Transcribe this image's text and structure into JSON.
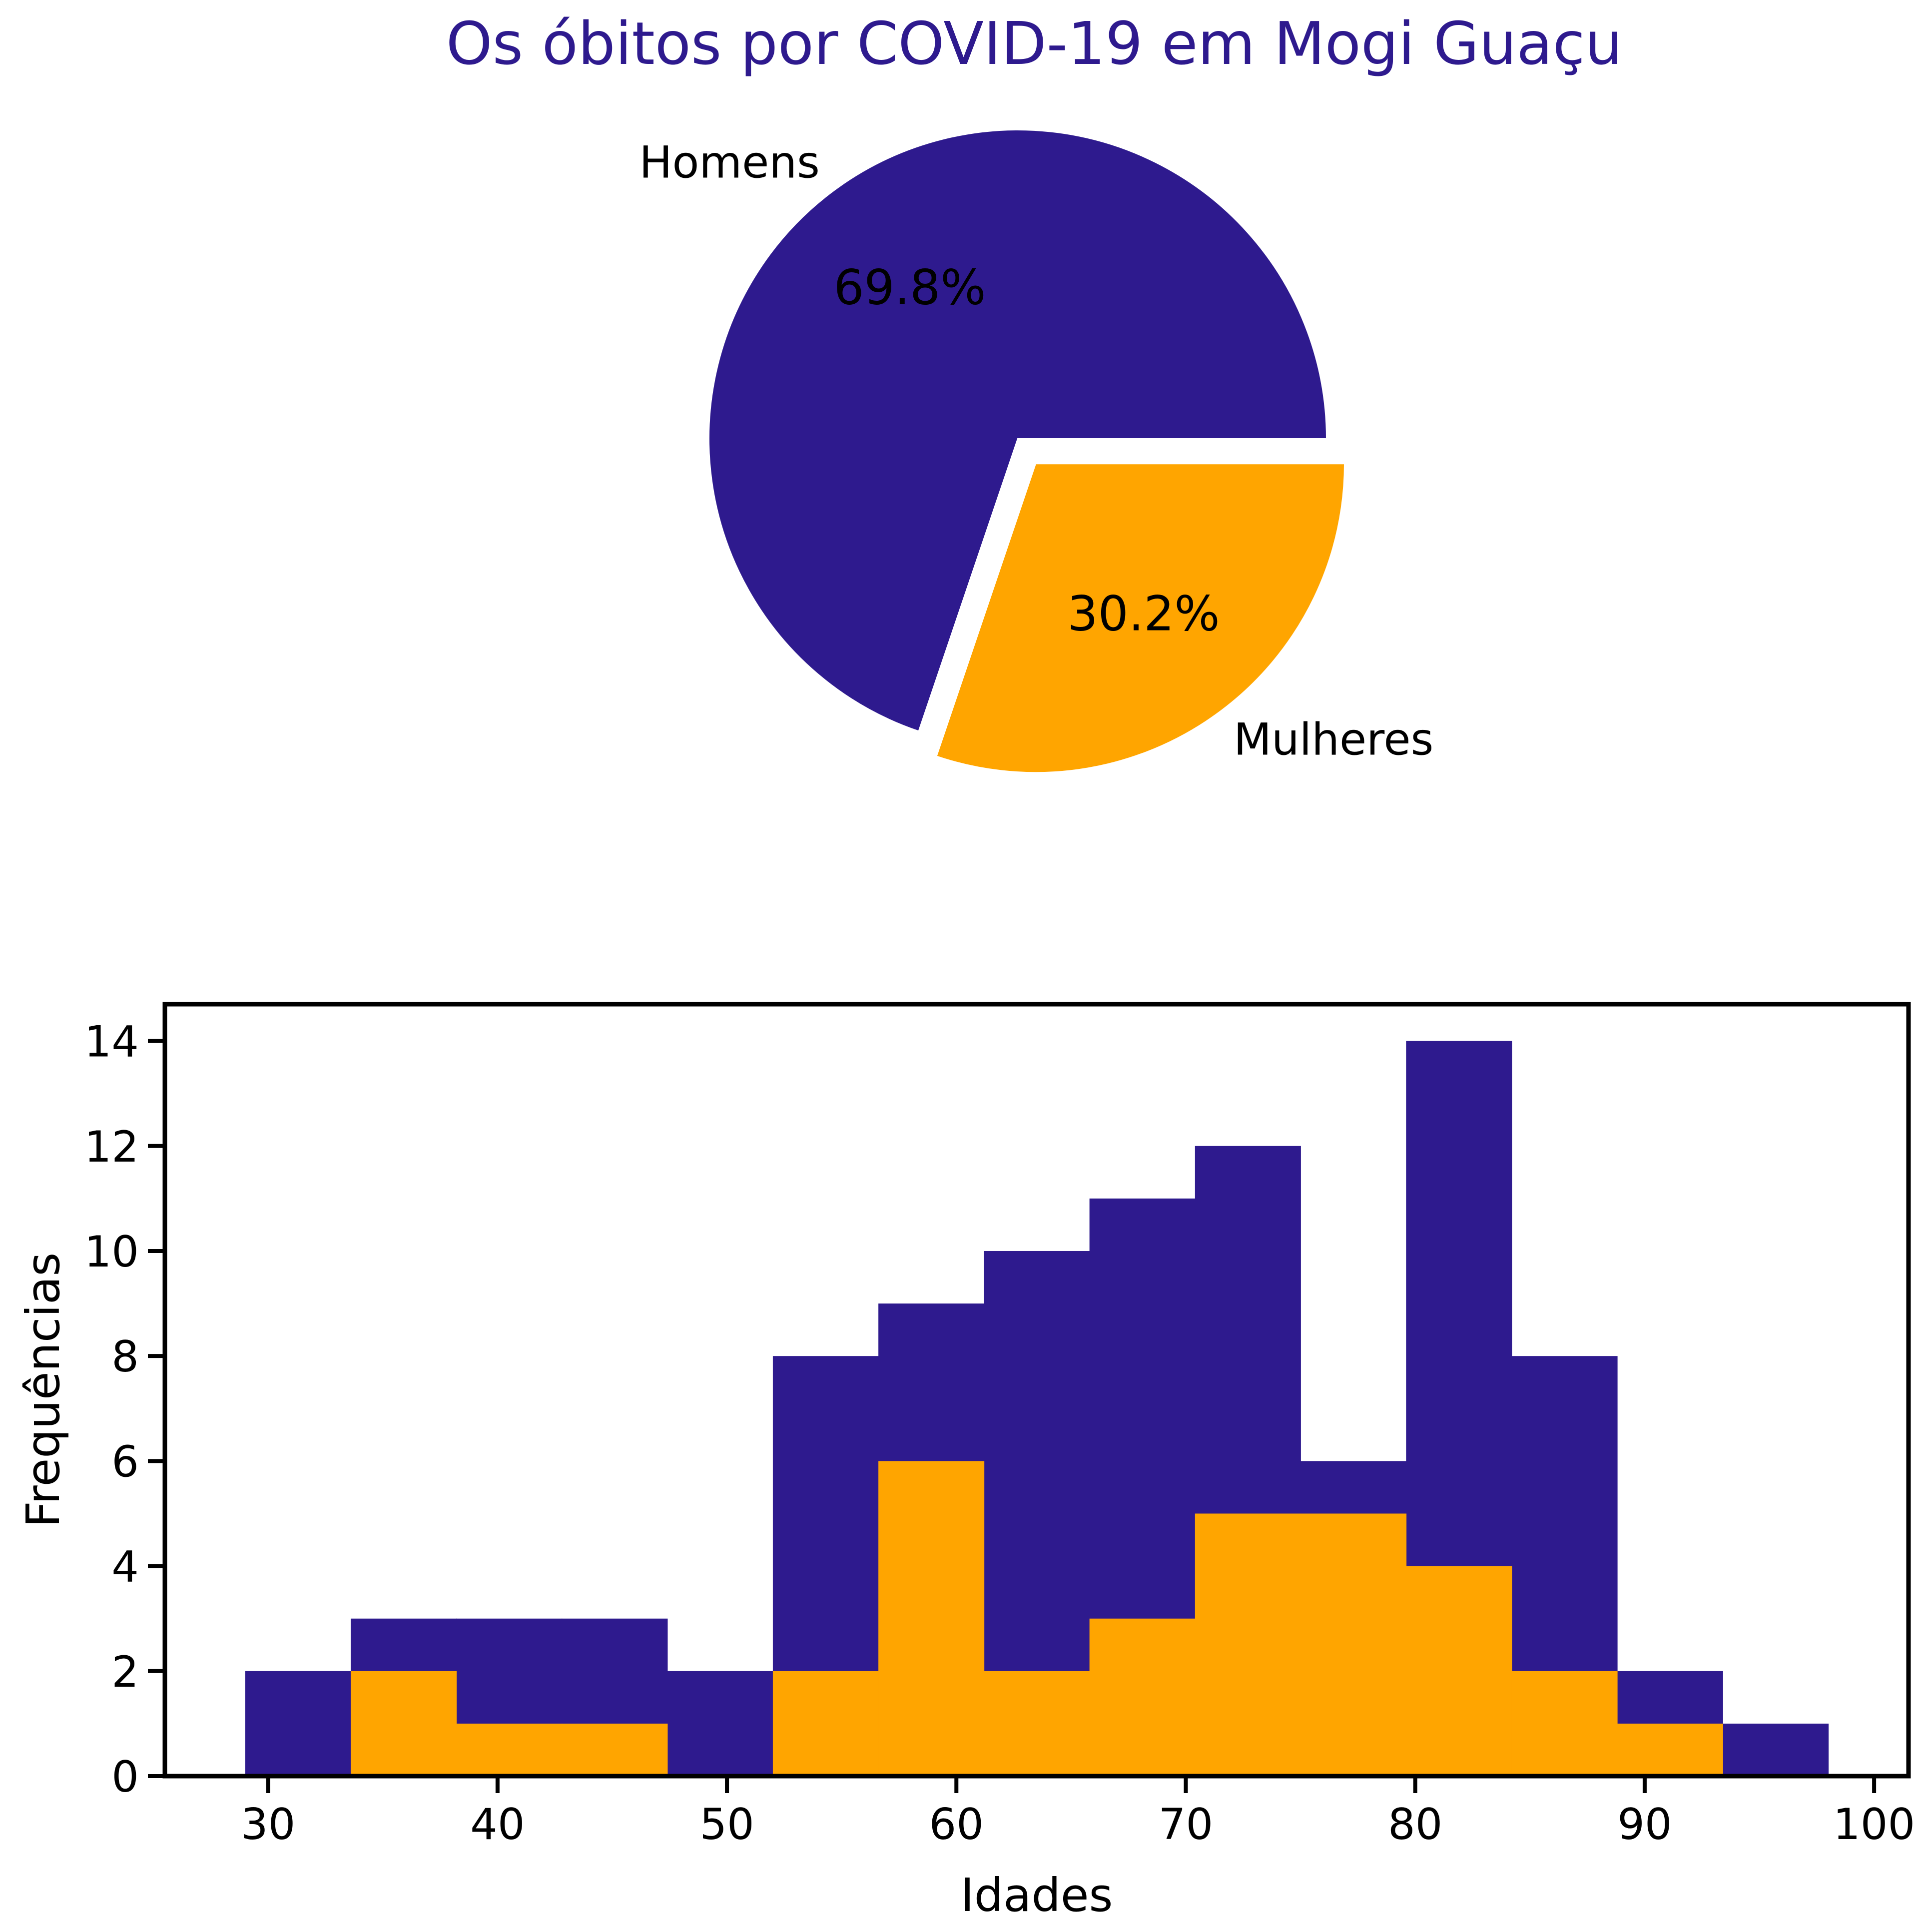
{
  "chart_data": [
    {
      "type": "pie",
      "title": "Os óbitos por COVID-19 em Mogi Guaçu",
      "title_color": "#2e1a8e",
      "slices": [
        {
          "label": "Homens",
          "value": 69.8,
          "pct_label": "69.8%",
          "color": "#2e1a8e",
          "explode": 0
        },
        {
          "label": "Mulheres",
          "value": 30.2,
          "pct_label": "30.2%",
          "color": "#ffa500",
          "explode": 0.1
        }
      ],
      "legend": "none"
    },
    {
      "type": "histogram",
      "xlabel": "Idades",
      "ylabel": "Frequências",
      "xlim": [
        25.5,
        101.5
      ],
      "ylim": [
        0,
        14.7
      ],
      "xticks": [
        30,
        40,
        50,
        60,
        70,
        80,
        90,
        100
      ],
      "yticks": [
        0,
        2,
        4,
        6,
        8,
        10,
        12,
        14
      ],
      "grid": false,
      "bin_edges": [
        29,
        33.6,
        38.2,
        42.8,
        47.4,
        52,
        56.6,
        61.2,
        65.8,
        70.4,
        75,
        79.6,
        84.2,
        88.8,
        93.4,
        98
      ],
      "series": [
        {
          "name": "Homens",
          "color": "#2e1a8e",
          "values": [
            2,
            3,
            3,
            3,
            2,
            8,
            9,
            10,
            11,
            12,
            6,
            14,
            8,
            2,
            1
          ]
        },
        {
          "name": "Mulheres",
          "color": "#ffa500",
          "values": [
            0,
            2,
            1,
            1,
            0,
            2,
            6,
            2,
            3,
            5,
            5,
            4,
            2,
            1,
            0
          ]
        }
      ]
    }
  ]
}
